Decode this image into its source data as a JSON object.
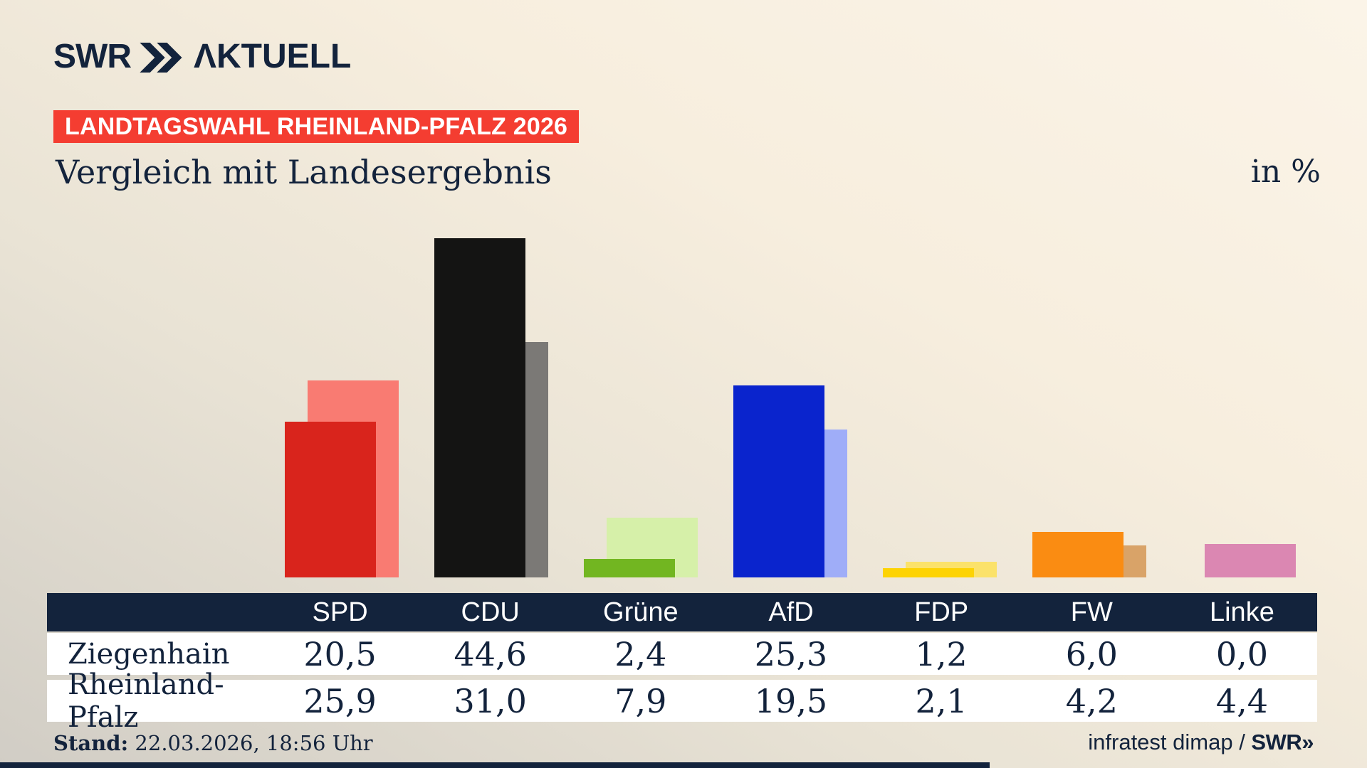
{
  "brand": {
    "swr": "SWR",
    "aktuell": "ΛKTUELL",
    "chevron_icon": "double-chevron-right"
  },
  "badge": {
    "text": "LANDTAGSWAHL RHEINLAND-PFALZ 2026",
    "bg": "#f43d31"
  },
  "header": {
    "title": "Vergleich mit Landesergebnis",
    "unit": "in %"
  },
  "chart_data": {
    "type": "bar",
    "title": "Vergleich mit Landesergebnis",
    "value_unit": "%",
    "categories": [
      "SPD",
      "CDU",
      "Grüne",
      "AfD",
      "FDP",
      "FW",
      "Linke"
    ],
    "series": [
      {
        "name": "Rheinland-Pfalz",
        "role": "background",
        "values": [
          25.9,
          31.0,
          7.9,
          19.5,
          2.1,
          4.2,
          4.4
        ],
        "colors": [
          "#f97b72",
          "#7b7976",
          "#d6f0a9",
          "#9fadf8",
          "#fbe26a",
          "#d9a368",
          "#db87b2"
        ]
      },
      {
        "name": "Ziegenhain",
        "role": "foreground",
        "values": [
          20.5,
          44.6,
          2.4,
          25.3,
          1.2,
          6.0,
          0.0
        ],
        "colors": [
          "#d9241c",
          "#141413",
          "#72b621",
          "#0a24cd",
          "#fdd303",
          "#fa8c12",
          null
        ]
      }
    ],
    "ylim": [
      0,
      50
    ],
    "gridlines": false,
    "legend": "none",
    "axes": "hidden (values shown in table below)"
  },
  "table": {
    "columns": [
      "SPD",
      "CDU",
      "Grüne",
      "AfD",
      "FDP",
      "FW",
      "Linke"
    ],
    "rows": [
      {
        "label": "Ziegenhain",
        "values": [
          "20,5",
          "44,6",
          "2,4",
          "25,3",
          "1,2",
          "6,0",
          "0,0"
        ]
      },
      {
        "label": "Rheinland-Pfalz",
        "values": [
          "25,9",
          "31,0",
          "7,9",
          "19,5",
          "2,1",
          "4,2",
          "4,4"
        ]
      }
    ]
  },
  "footer": {
    "stand_label": "Stand:",
    "stand_value": " 22.03.2026, 18:56 Uhr",
    "source": "infratest dimap / ",
    "source_brand": "SWR»"
  },
  "colors": {
    "navy": "#13233c",
    "badge_red": "#f43d31",
    "bg_light": "#fbf4e8",
    "bg_dark": "#d1cdc5",
    "row_white": "#ffffff"
  }
}
